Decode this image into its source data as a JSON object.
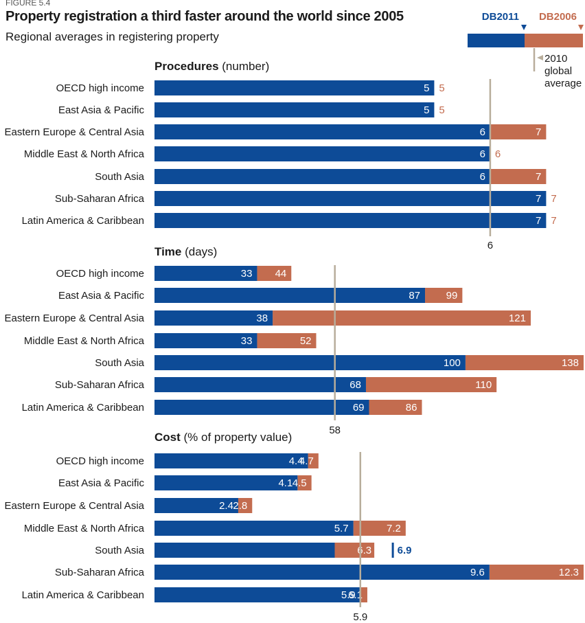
{
  "figure_label": "FIGURE 5.4",
  "title": "Property registration a third faster around the world since 2005",
  "subtitle": "Regional averages in registering property",
  "legend": {
    "new_label": "DB2011",
    "old_label": "DB2006",
    "avg_note": [
      "2010",
      "global",
      "average"
    ]
  },
  "colors": {
    "new": "#0d4b97",
    "old": "#c36c4f",
    "avg": "#b8ad9b"
  },
  "chart_data": [
    {
      "type": "bar",
      "panel_title": "Procedures",
      "panel_unit": "(number)",
      "categories": [
        "OECD high income",
        "East Asia & Pacific",
        "Eastern Europe & Central Asia",
        "Middle East & North Africa",
        "South Asia",
        "Sub-Saharan Africa",
        "Latin America & Caribbean"
      ],
      "series": [
        {
          "name": "DB2011",
          "values": [
            5,
            5,
            6,
            6,
            6,
            7,
            7
          ]
        },
        {
          "name": "DB2006",
          "values": [
            5,
            5,
            7,
            6,
            7,
            7,
            7
          ]
        }
      ],
      "value_labels": {
        "DB2011": [
          "5",
          "5",
          "6",
          "6",
          "6",
          "7",
          "7"
        ],
        "DB2006": [
          "5",
          "5",
          "7",
          "6",
          "7",
          "7",
          "7"
        ]
      },
      "global_average": 6,
      "global_average_label": "6",
      "xlim": [
        0,
        7.67
      ]
    },
    {
      "type": "bar",
      "panel_title": "Time",
      "panel_unit": "(days)",
      "categories": [
        "OECD high income",
        "East Asia & Pacific",
        "Eastern Europe & Central Asia",
        "Middle East & North Africa",
        "South Asia",
        "Sub-Saharan Africa",
        "Latin America & Caribbean"
      ],
      "series": [
        {
          "name": "DB2011",
          "values": [
            33,
            87,
            38,
            33,
            100,
            68,
            69
          ]
        },
        {
          "name": "DB2006",
          "values": [
            44,
            99,
            121,
            52,
            138,
            110,
            86
          ]
        }
      ],
      "value_labels": {
        "DB2011": [
          "33",
          "87",
          "38",
          "33",
          "100",
          "68",
          "69"
        ],
        "DB2006": [
          "44",
          "99",
          "121",
          "52",
          "138",
          "110",
          "86"
        ]
      },
      "global_average": 58,
      "global_average_label": "58",
      "xlim": [
        0,
        138
      ]
    },
    {
      "type": "bar",
      "panel_title": "Cost",
      "panel_unit": "(% of property value)",
      "categories": [
        "OECD high income",
        "East Asia & Pacific",
        "Eastern Europe & Central Asia",
        "Middle East & North Africa",
        "South Asia",
        "Sub-Saharan Africa",
        "Latin America & Caribbean"
      ],
      "series": [
        {
          "name": "DB2011",
          "values": [
            4.4,
            4.1,
            2.4,
            5.7,
            6.9,
            9.6,
            5.9
          ]
        },
        {
          "name": "DB2006",
          "values": [
            4.7,
            4.5,
            2.8,
            7.2,
            6.3,
            12.3,
            6.1
          ]
        }
      ],
      "value_labels": {
        "DB2011": [
          "4.4",
          "4.1",
          "2.4",
          "5.7",
          "6.9",
          "9.6",
          "5.9"
        ],
        "DB2006": [
          "4.7",
          "4.5",
          "2.8",
          "7.2",
          "6.3",
          "12.3",
          "6.1"
        ]
      },
      "global_average": 5.9,
      "global_average_label": "5.9",
      "xlim": [
        0,
        12.3
      ]
    }
  ]
}
